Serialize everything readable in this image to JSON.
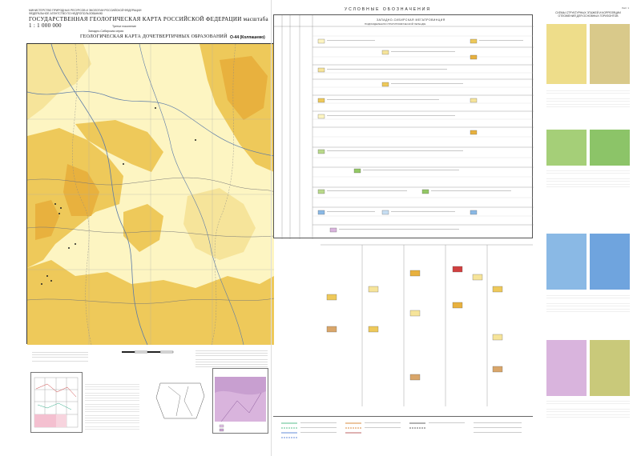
{
  "colors": {
    "yellow_light": "#fdf5c2",
    "yellow_mid": "#f6e49a",
    "yellow_dark": "#eec95a",
    "orange": "#e8b13e",
    "green_light": "#b9d98a",
    "green_mid": "#93c865",
    "blue_light": "#c7def3",
    "blue_mid": "#8ab9e5",
    "purple": "#d9b4dd",
    "olive": "#c9c97a",
    "boundary": "#3a3a3a"
  },
  "header": {
    "ministry": "МИНИСТЕРСТВО ПРИРОДНЫХ РЕСУРСОВ И ЭКОЛОГИИ РОССИЙСКОЙ ФЕДЕРАЦИИ",
    "agency": "ФЕДЕРАЛЬНОЕ АГЕНТСТВО ПО НЕДРОПОЛЬЗОВАНИЮ",
    "title": "ГОСУДАРСТВЕННАЯ ГЕОЛОГИЧЕСКАЯ КАРТА РОССИЙСКОЙ ФЕДЕРАЦИИ масштаба 1 : 1 000 000",
    "edition": "Третье поколение",
    "series": "Западно-Сибирская серия",
    "map_title": "ГЕОЛОГИЧЕСКАЯ КАРТА ДОЧЕТВЕРТИЧНЫХ ОБРАЗОВАНИЙ",
    "sheet": "O-44 (Колпашево)"
  },
  "legend": {
    "title": "УСЛОВНЫЕ ОБОЗНАЧЕНИЯ",
    "subtitle": "ЗАПАДНО-СИБИРСКАЯ МЕГАПРОВИНЦИЯ",
    "subtitle2": "ПОДРАЗДЕЛЕНИЯ СТРАТИГРАФИЧЕСКОЙ ЛЕГЕНДЫ"
  },
  "right_column": {
    "title": "СХЕМЫ СТРУКТУРНЫХ ЭТАЖЕЙ И КОРРЕЛЯЦИИ ОТЛОЖЕНИЙ ДЛЯ ОСНОВНЫХ ГОРИЗОНТОВ"
  },
  "page": "Лист 1"
}
